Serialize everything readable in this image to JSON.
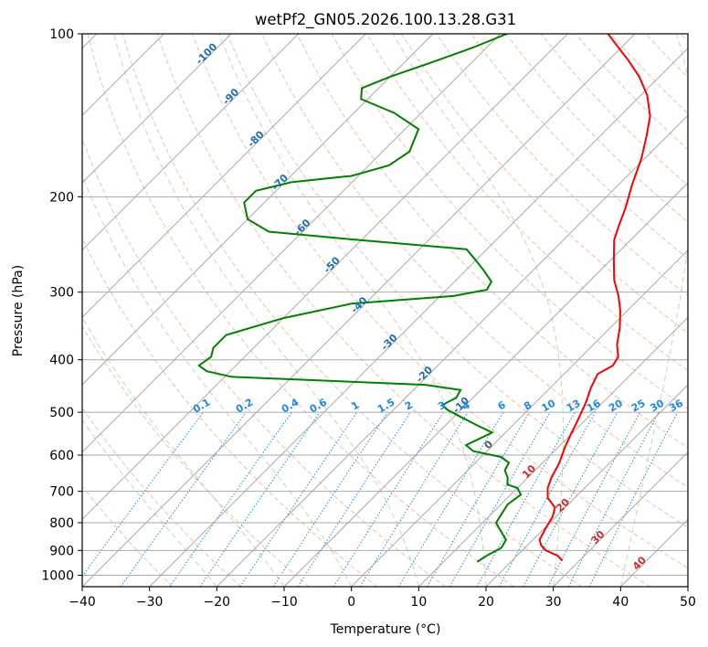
{
  "chart_data": {
    "type": "line",
    "subtype": "skew-t log-p diagram",
    "title": "wetPf2_GN05.2026.100.13.28.G31",
    "xlabel": "Temperature (°C)",
    "ylabel": "Pressure (hPa)",
    "xlim": [
      -40,
      50
    ],
    "ylim": [
      1050,
      100
    ],
    "y_scale": "log",
    "x_ticks": [
      "−40",
      "−30",
      "−20",
      "−10",
      "0",
      "10",
      "20",
      "30",
      "40",
      "50"
    ],
    "y_ticks": [
      {
        "value": 100,
        "label": "100"
      },
      {
        "value": 200,
        "label": "200"
      },
      {
        "value": 300,
        "label": "300"
      },
      {
        "value": 400,
        "label": "400"
      },
      {
        "value": 500,
        "label": "500"
      },
      {
        "value": 600,
        "label": "600"
      },
      {
        "value": 700,
        "label": "700"
      },
      {
        "value": 800,
        "label": "800"
      },
      {
        "value": 900,
        "label": "900"
      },
      {
        "value": 1000,
        "label": "1000"
      }
    ],
    "grid": true,
    "isotherm_labels": [
      {
        "label": "-100",
        "temp": -100,
        "pressure": 110
      },
      {
        "label": "-90",
        "temp": -90,
        "pressure": 132
      },
      {
        "label": "-80",
        "temp": -80,
        "pressure": 158
      },
      {
        "label": "-70",
        "temp": -70,
        "pressure": 190
      },
      {
        "label": "-60",
        "temp": -60,
        "pressure": 230
      },
      {
        "label": "-50",
        "temp": -50,
        "pressure": 270
      },
      {
        "label": "-40",
        "temp": -40,
        "pressure": 320
      },
      {
        "label": "-30",
        "temp": -30,
        "pressure": 375
      },
      {
        "label": "-20",
        "temp": -20,
        "pressure": 430
      },
      {
        "label": "-10",
        "temp": -10,
        "pressure": 490
      },
      {
        "label": "0",
        "temp": 0,
        "pressure": 580
      },
      {
        "label": "10",
        "temp": 10,
        "pressure": 650
      },
      {
        "label": "20",
        "temp": 20,
        "pressure": 750
      },
      {
        "label": "30",
        "temp": 30,
        "pressure": 860
      },
      {
        "label": "40",
        "temp": 40,
        "pressure": 960
      }
    ],
    "mixing_ratio_labels": [
      "0.1",
      "0.2",
      "0.4",
      "0.6",
      "1",
      "1.5",
      "2",
      "3",
      "4",
      "6",
      "8",
      "10",
      "13",
      "16",
      "20",
      "25",
      "30",
      "36"
    ],
    "mixing_ratio_label_pressure": 500,
    "series": [
      {
        "kind": "temperature",
        "color": "#ff0000",
        "points": [
          [
            27.5,
            940
          ],
          [
            26,
            920
          ],
          [
            23.5,
            900
          ],
          [
            22,
            880
          ],
          [
            21,
            860
          ],
          [
            20.2,
            820
          ],
          [
            19.5,
            780
          ],
          [
            18.5,
            750
          ],
          [
            16,
            720
          ],
          [
            14.5,
            690
          ],
          [
            13.5,
            660
          ],
          [
            12.5,
            620
          ],
          [
            11,
            580
          ],
          [
            10,
            550
          ],
          [
            9,
            520
          ],
          [
            7.5,
            480
          ],
          [
            6,
            450
          ],
          [
            5,
            425
          ],
          [
            6,
            410
          ],
          [
            5.5,
            395
          ],
          [
            3.5,
            375
          ],
          [
            1.5,
            350
          ],
          [
            -1,
            325
          ],
          [
            -3.5,
            305
          ],
          [
            -6.5,
            285
          ],
          [
            -9.5,
            262
          ],
          [
            -12.5,
            240
          ],
          [
            -14,
            225
          ],
          [
            -15.5,
            210
          ],
          [
            -18,
            190
          ],
          [
            -20.5,
            170
          ],
          [
            -23,
            155
          ],
          [
            -25.5,
            142
          ],
          [
            -29,
            130
          ],
          [
            -33,
            120
          ],
          [
            -37,
            112
          ],
          [
            -41,
            105
          ],
          [
            -44,
            100
          ]
        ]
      },
      {
        "kind": "dewpoint",
        "color": "#008000",
        "points": [
          [
            15,
            945
          ],
          [
            15.5,
            920
          ],
          [
            16.5,
            890
          ],
          [
            16,
            860
          ],
          [
            14,
            830
          ],
          [
            12,
            800
          ],
          [
            11.5,
            770
          ],
          [
            11,
            740
          ],
          [
            11.5,
            710
          ],
          [
            10,
            690
          ],
          [
            8,
            680
          ],
          [
            7,
            660
          ],
          [
            5.5,
            640
          ],
          [
            5,
            620
          ],
          [
            3,
            605
          ],
          [
            -2,
            590
          ],
          [
            -4,
            575
          ],
          [
            -3,
            560
          ],
          [
            -2,
            545
          ],
          [
            -5,
            530
          ],
          [
            -9,
            510
          ],
          [
            -12,
            495
          ],
          [
            -13.5,
            485
          ],
          [
            -12.5,
            470
          ],
          [
            -13,
            455
          ],
          [
            -19,
            445
          ],
          [
            -49,
            430
          ],
          [
            -53.5,
            420
          ],
          [
            -55.5,
            410
          ],
          [
            -55,
            395
          ],
          [
            -56,
            380
          ],
          [
            -56,
            360
          ],
          [
            -50,
            335
          ],
          [
            -42,
            315
          ],
          [
            -28,
            305
          ],
          [
            -24,
            297
          ],
          [
            -24.5,
            287
          ],
          [
            -27,
            275
          ],
          [
            -30,
            262
          ],
          [
            -33,
            250
          ],
          [
            -51,
            240
          ],
          [
            -65,
            232
          ],
          [
            -70,
            220
          ],
          [
            -73,
            205
          ],
          [
            -73,
            195
          ],
          [
            -69,
            188
          ],
          [
            -61,
            183
          ],
          [
            -57,
            175
          ],
          [
            -56,
            165
          ],
          [
            -58,
            150
          ],
          [
            -64,
            140
          ],
          [
            -71,
            132
          ],
          [
            -72.5,
            126
          ],
          [
            -70,
            120
          ],
          [
            -66,
            113
          ],
          [
            -62,
            106
          ],
          [
            -59,
            100
          ]
        ]
      }
    ]
  },
  "colors": {
    "temperature": "#ff0000",
    "dewpoint": "#008000",
    "isotherm_label": "#1f6fb0",
    "isotherm_label_warm": "#d62728",
    "mixing_ratio": "#1e88e5",
    "dry_adiabat": "#f4a582",
    "moist_adiabat": "#a6d5a6",
    "grid": "#aaaaaa"
  }
}
